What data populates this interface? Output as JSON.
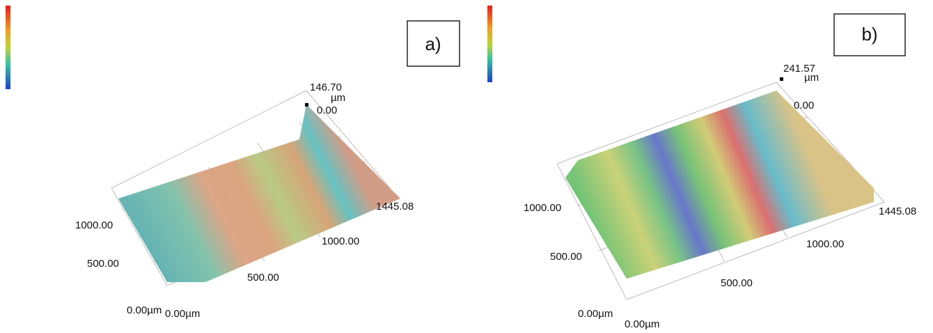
{
  "panels": [
    {
      "label": "a)",
      "max": "146.70",
      "unit": "µm",
      "zero": "0.00",
      "y_labels": [
        "1000.00",
        "500.00",
        "0.00µm"
      ],
      "x_labels": [
        "0.00µm",
        "500.00",
        "1000.00",
        "1445.08"
      ]
    },
    {
      "label": "b)",
      "max": "241.57",
      "unit": "µm",
      "zero": "0.00",
      "y_labels": [
        "1000.00",
        "500.00",
        "0.00µm"
      ],
      "x_labels": [
        "0.00µm",
        "500.00",
        "1000.00",
        "1445.08"
      ]
    }
  ]
}
